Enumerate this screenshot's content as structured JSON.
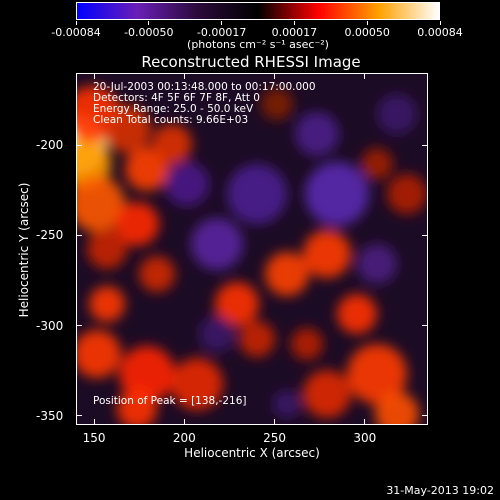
{
  "colorbar": {
    "tick_labels": [
      "-0.00084",
      "-0.00050",
      "-0.00017",
      "0.00017",
      "0.00050",
      "0.00084"
    ],
    "unit": "(photons cm⁻² s⁻¹ asec⁻²)",
    "colors": [
      "#0000ff",
      "#6a1fb5",
      "#2a0a3a",
      "#000000",
      "#ff0000",
      "#ffa000",
      "#ffffff"
    ]
  },
  "title": "Reconstructed RHESSI Image",
  "annotations": [
    "20-Jul-2003 00:13:48.000 to 00:17:00.000",
    "Detectors: 4F 5F 6F 7F 8F, Att 0",
    "Energy Range: 25.0 - 50.0 keV",
    "Clean     Total counts: 9.66E+03"
  ],
  "peak_label": "Position of Peak = [138,-216]",
  "axes": {
    "xlabel": "Heliocentric X (arcsec)",
    "ylabel": "Heliocentric Y (arcsec)",
    "x_ticks": [
      "150",
      "200",
      "250",
      "300"
    ],
    "y_ticks": [
      "-200",
      "-250",
      "-300",
      "-350"
    ],
    "x_range": [
      140,
      335
    ],
    "y_range": [
      -355,
      -160
    ]
  },
  "footer": "31-May-2013 19:02"
}
